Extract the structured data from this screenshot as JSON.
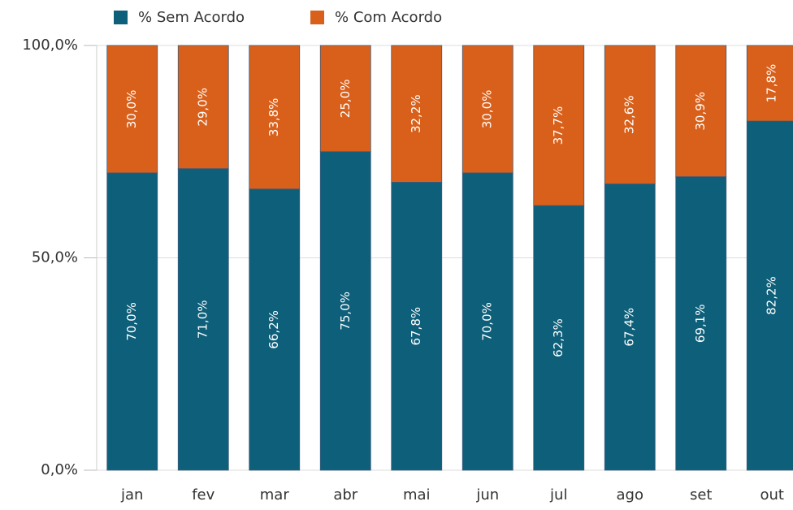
{
  "chart_data": {
    "type": "stacked_bar",
    "categories": [
      "jan",
      "fev",
      "mar",
      "abr",
      "mai",
      "jun",
      "jul",
      "ago",
      "set",
      "out"
    ],
    "series": [
      {
        "name": "% Sem Acordo",
        "color": "#0e5f7a",
        "values": [
          70.0,
          71.0,
          66.2,
          75.0,
          67.8,
          70.0,
          62.3,
          67.4,
          69.1,
          82.2
        ],
        "value_labels": [
          "70,0%",
          "71,0%",
          "66,2%",
          "75,0%",
          "67,8%",
          "70,0%",
          "62,3%",
          "67,4%",
          "69,1%",
          "82,2%"
        ]
      },
      {
        "name": "% Com Acordo",
        "color": "#d9601a",
        "values": [
          30.0,
          29.0,
          33.8,
          25.0,
          32.2,
          30.0,
          37.7,
          32.6,
          30.9,
          17.8
        ],
        "value_labels": [
          "30,0%",
          "29,0%",
          "33,8%",
          "25,0%",
          "32,2%",
          "30,0%",
          "37,7%",
          "32,6%",
          "30,9%",
          "17,8%"
        ]
      }
    ],
    "ylim": [
      0,
      100
    ],
    "yticks": [
      {
        "value": 0,
        "label": "0,0%"
      },
      {
        "value": 50,
        "label": "50,0%"
      },
      {
        "value": 100,
        "label": "100,0%"
      }
    ],
    "grid": true,
    "legend": "top"
  }
}
